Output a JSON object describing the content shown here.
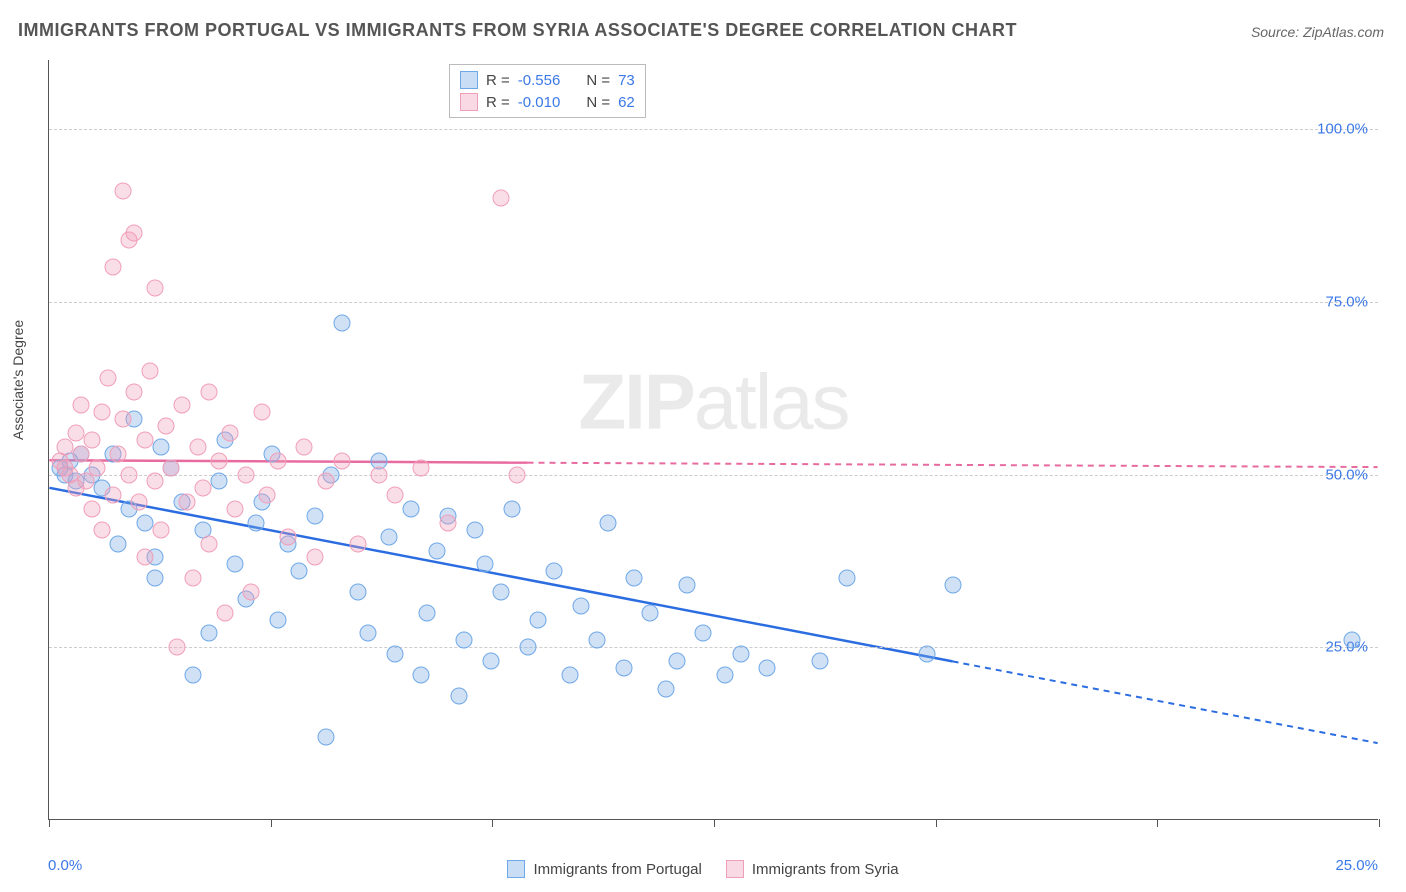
{
  "title": "IMMIGRANTS FROM PORTUGAL VS IMMIGRANTS FROM SYRIA ASSOCIATE'S DEGREE CORRELATION CHART",
  "source": "Source: ZipAtlas.com",
  "ylabel": "Associate's Degree",
  "watermark_a": "ZIP",
  "watermark_b": "atlas",
  "chart": {
    "type": "scatter",
    "xlim": [
      0,
      25
    ],
    "ylim": [
      0,
      110
    ],
    "ytick_labels": [
      "25.0%",
      "50.0%",
      "75.0%",
      "100.0%"
    ],
    "ytick_values": [
      25,
      50,
      75,
      100
    ],
    "xtick_label_left": "0.0%",
    "xtick_label_right": "25.0%",
    "xtick_positions": [
      0,
      4.17,
      8.33,
      12.5,
      16.67,
      20.83,
      25
    ],
    "grid_color": "#cccccc",
    "background_color": "#ffffff",
    "marker_size": 17,
    "series": [
      {
        "name": "Immigrants from Portugal",
        "color_fill": "rgba(120,170,230,0.35)",
        "color_stroke": "#6fa8e8",
        "trend_color": "#2b6de0",
        "trend_style": "solid-then-dash",
        "trend": {
          "x1": 0,
          "y1": 48,
          "x2": 25,
          "y2": 11,
          "solid_until_x": 17
        },
        "R": "-0.556",
        "N": "73",
        "points": [
          [
            0.2,
            51
          ],
          [
            0.3,
            50
          ],
          [
            0.4,
            52
          ],
          [
            0.5,
            49
          ],
          [
            0.6,
            53
          ],
          [
            0.8,
            50
          ],
          [
            1.0,
            48
          ],
          [
            1.2,
            53
          ],
          [
            1.3,
            40
          ],
          [
            1.5,
            45
          ],
          [
            1.6,
            58
          ],
          [
            1.8,
            43
          ],
          [
            2.0,
            38
          ],
          [
            2.0,
            35
          ],
          [
            2.1,
            54
          ],
          [
            2.3,
            51
          ],
          [
            2.5,
            46
          ],
          [
            2.7,
            21
          ],
          [
            2.9,
            42
          ],
          [
            3.0,
            27
          ],
          [
            3.2,
            49
          ],
          [
            3.3,
            55
          ],
          [
            3.5,
            37
          ],
          [
            3.7,
            32
          ],
          [
            3.9,
            43
          ],
          [
            4.0,
            46
          ],
          [
            4.2,
            53
          ],
          [
            4.3,
            29
          ],
          [
            4.5,
            40
          ],
          [
            4.7,
            36
          ],
          [
            5.0,
            44
          ],
          [
            5.2,
            12
          ],
          [
            5.3,
            50
          ],
          [
            5.5,
            72
          ],
          [
            5.8,
            33
          ],
          [
            6.0,
            27
          ],
          [
            6.2,
            52
          ],
          [
            6.4,
            41
          ],
          [
            6.5,
            24
          ],
          [
            6.8,
            45
          ],
          [
            7.0,
            21
          ],
          [
            7.1,
            30
          ],
          [
            7.3,
            39
          ],
          [
            7.5,
            44
          ],
          [
            7.7,
            18
          ],
          [
            7.8,
            26
          ],
          [
            8.0,
            42
          ],
          [
            8.2,
            37
          ],
          [
            8.3,
            23
          ],
          [
            8.5,
            33
          ],
          [
            8.7,
            45
          ],
          [
            9.0,
            25
          ],
          [
            9.2,
            29
          ],
          [
            9.5,
            36
          ],
          [
            9.8,
            21
          ],
          [
            10.0,
            31
          ],
          [
            10.3,
            26
          ],
          [
            10.5,
            43
          ],
          [
            10.8,
            22
          ],
          [
            11.0,
            35
          ],
          [
            11.3,
            30
          ],
          [
            11.6,
            19
          ],
          [
            11.8,
            23
          ],
          [
            12.0,
            34
          ],
          [
            12.3,
            27
          ],
          [
            12.7,
            21
          ],
          [
            13.0,
            24
          ],
          [
            13.5,
            22
          ],
          [
            14.5,
            23
          ],
          [
            15.0,
            35
          ],
          [
            16.5,
            24
          ],
          [
            17.0,
            34
          ],
          [
            24.5,
            26
          ]
        ]
      },
      {
        "name": "Immigrants from Syria",
        "color_fill": "rgba(240,160,185,0.35)",
        "color_stroke": "#f09fb8",
        "trend_color": "#e86ba0",
        "trend_style": "solid-then-dash",
        "trend": {
          "x1": 0,
          "y1": 52,
          "x2": 25,
          "y2": 51,
          "solid_until_x": 9
        },
        "R": "-0.010",
        "N": "62",
        "points": [
          [
            0.2,
            52
          ],
          [
            0.3,
            51
          ],
          [
            0.3,
            54
          ],
          [
            0.4,
            50
          ],
          [
            0.5,
            56
          ],
          [
            0.5,
            48
          ],
          [
            0.6,
            53
          ],
          [
            0.6,
            60
          ],
          [
            0.7,
            49
          ],
          [
            0.8,
            55
          ],
          [
            0.8,
            45
          ],
          [
            0.9,
            51
          ],
          [
            1.0,
            59
          ],
          [
            1.0,
            42
          ],
          [
            1.1,
            64
          ],
          [
            1.2,
            47
          ],
          [
            1.2,
            80
          ],
          [
            1.3,
            53
          ],
          [
            1.4,
            91
          ],
          [
            1.4,
            58
          ],
          [
            1.5,
            50
          ],
          [
            1.5,
            84
          ],
          [
            1.6,
            85
          ],
          [
            1.6,
            62
          ],
          [
            1.7,
            46
          ],
          [
            1.8,
            55
          ],
          [
            1.8,
            38
          ],
          [
            1.9,
            65
          ],
          [
            2.0,
            49
          ],
          [
            2.0,
            77
          ],
          [
            2.1,
            42
          ],
          [
            2.2,
            57
          ],
          [
            2.3,
            51
          ],
          [
            2.4,
            25
          ],
          [
            2.5,
            60
          ],
          [
            2.6,
            46
          ],
          [
            2.7,
            35
          ],
          [
            2.8,
            54
          ],
          [
            2.9,
            48
          ],
          [
            3.0,
            40
          ],
          [
            3.0,
            62
          ],
          [
            3.2,
            52
          ],
          [
            3.3,
            30
          ],
          [
            3.4,
            56
          ],
          [
            3.5,
            45
          ],
          [
            3.7,
            50
          ],
          [
            3.8,
            33
          ],
          [
            4.0,
            59
          ],
          [
            4.1,
            47
          ],
          [
            4.3,
            52
          ],
          [
            4.5,
            41
          ],
          [
            4.8,
            54
          ],
          [
            5.0,
            38
          ],
          [
            5.2,
            49
          ],
          [
            5.5,
            52
          ],
          [
            5.8,
            40
          ],
          [
            6.2,
            50
          ],
          [
            6.5,
            47
          ],
          [
            7.0,
            51
          ],
          [
            7.5,
            43
          ],
          [
            8.5,
            90
          ],
          [
            8.8,
            50
          ]
        ]
      }
    ]
  },
  "stats_legend": {
    "R_label": "R =",
    "N_label": "N ="
  },
  "bottom_legend": [
    "Immigrants from Portugal",
    "Immigrants from Syria"
  ]
}
